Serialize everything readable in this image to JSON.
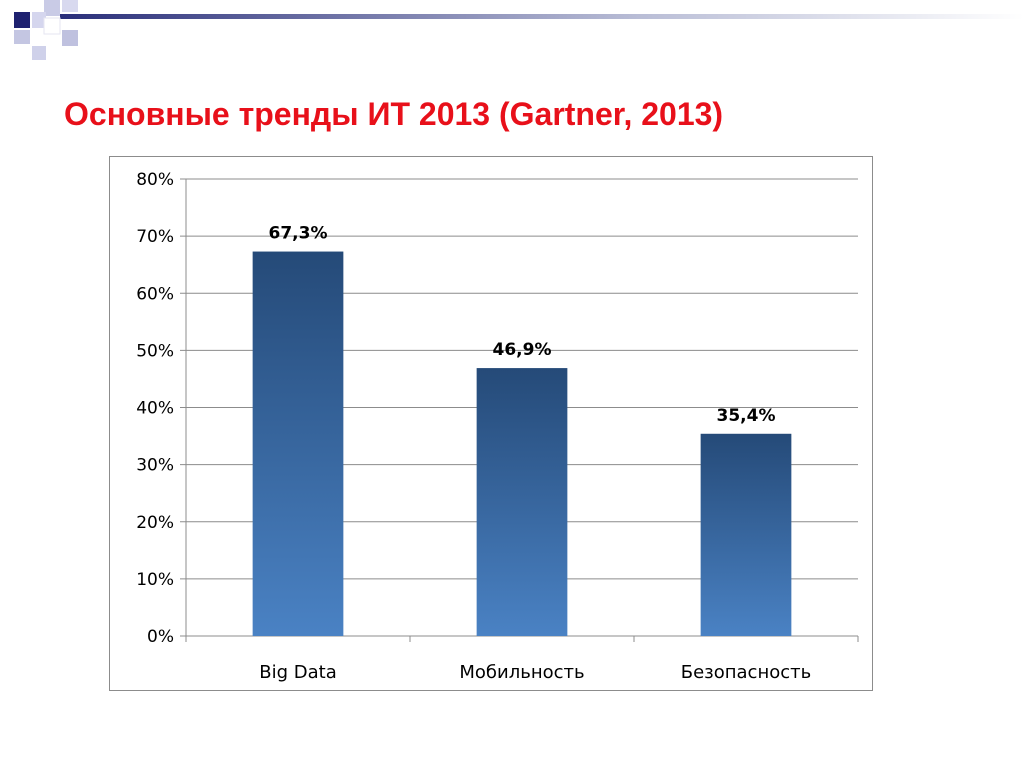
{
  "slide": {
    "title": "Основные тренды ИТ 2013 (Gartner, 2013)",
    "title_color": "#e8101a"
  },
  "chart_data": {
    "type": "bar",
    "title": "",
    "xlabel": "",
    "ylabel": "",
    "categories": [
      "Big Data",
      "Мобильность",
      "Безопасность"
    ],
    "values": [
      67.3,
      46.9,
      35.4
    ],
    "data_labels": [
      "67,3%",
      "46,9%",
      "35,4%"
    ],
    "ylim": [
      0,
      80
    ],
    "y_ticks": [
      0,
      10,
      20,
      30,
      40,
      50,
      60,
      70,
      80
    ],
    "y_tick_labels": [
      "0%",
      "10%",
      "20%",
      "30%",
      "40%",
      "50%",
      "60%",
      "70%",
      "80%"
    ],
    "grid": true,
    "legend": "none",
    "bar_color_top": "#254a78",
    "bar_color_bottom": "#4a82c4"
  }
}
